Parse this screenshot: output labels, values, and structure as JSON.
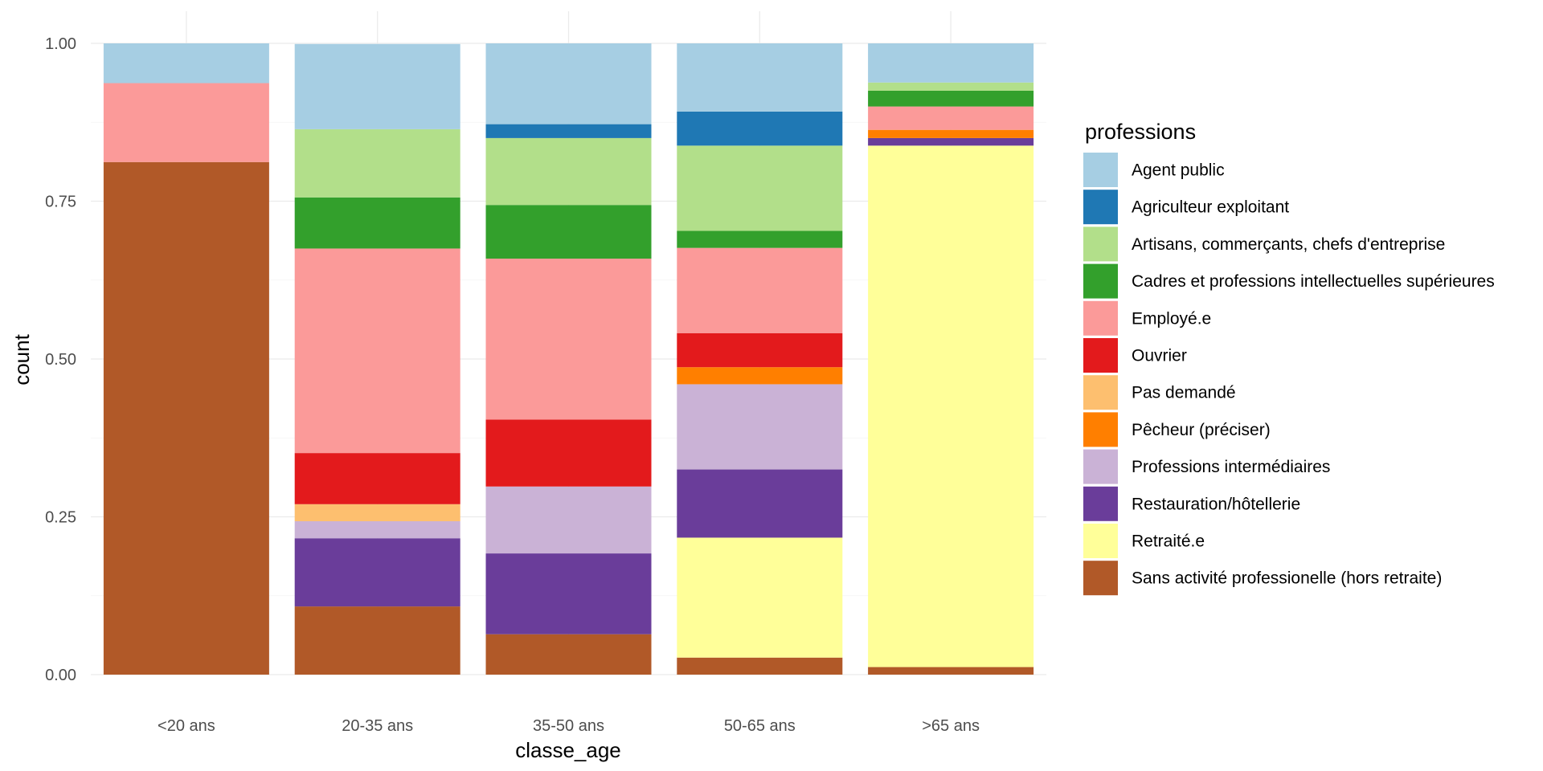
{
  "chart_data": {
    "type": "bar",
    "stacked": true,
    "position": "fill",
    "title": "",
    "xlabel": "classe_age",
    "ylabel": "count",
    "ylim": [
      0,
      1
    ],
    "yticks": [
      "0.00",
      "0.25",
      "0.50",
      "0.75",
      "1.00"
    ],
    "ytick_values": [
      0,
      0.25,
      0.5,
      0.75,
      1.0
    ],
    "grid": true,
    "legend_title": "professions",
    "legend_position": "right",
    "categories": [
      "<20 ans",
      "20-35 ans",
      "35-50 ans",
      "50-65 ans",
      ">65 ans"
    ],
    "series": [
      {
        "name": "Agent public",
        "color": "#A6CEE3",
        "values": [
          0.063,
          0.135,
          0.128,
          0.108,
          0.062
        ]
      },
      {
        "name": "Agriculteur exploitant",
        "color": "#1F78B4",
        "values": [
          0,
          0,
          0.022,
          0.054,
          0
        ]
      },
      {
        "name": "Artisans, commerçants, chefs d'entreprise",
        "color": "#B2DF8A",
        "values": [
          0,
          0.108,
          0.106,
          0.135,
          0.013
        ]
      },
      {
        "name": "Cadres et professions intellectuelles supérieures",
        "color": "#33A02C",
        "values": [
          0,
          0.081,
          0.085,
          0.027,
          0.025
        ]
      },
      {
        "name": "Employé.e",
        "color": "#FB9A99",
        "values": [
          0.125,
          0.324,
          0.255,
          0.135,
          0.037
        ]
      },
      {
        "name": "Ouvrier",
        "color": "#E31A1C",
        "values": [
          0,
          0.081,
          0.106,
          0.054,
          0
        ]
      },
      {
        "name": "Pas demandé",
        "color": "#FDBF6F",
        "values": [
          0,
          0.027,
          0,
          0,
          0
        ]
      },
      {
        "name": "Pêcheur (préciser)",
        "color": "#FF7F00",
        "values": [
          0,
          0,
          0,
          0.027,
          0.013
        ]
      },
      {
        "name": "Professions intermédiaires",
        "color": "#CAB2D6",
        "values": [
          0,
          0.027,
          0.106,
          0.135,
          0
        ]
      },
      {
        "name": "Restauration/hôtellerie",
        "color": "#6A3D9A",
        "values": [
          0,
          0.108,
          0.128,
          0.108,
          0.012
        ]
      },
      {
        "name": "Retraité.e",
        "color": "#FFFF99",
        "values": [
          0,
          0,
          0,
          0.19,
          0.826
        ]
      },
      {
        "name": "Sans activité professionelle (hors retraite)",
        "color": "#B15928",
        "values": [
          0.812,
          0.108,
          0.064,
          0.027,
          0.012
        ]
      }
    ]
  }
}
